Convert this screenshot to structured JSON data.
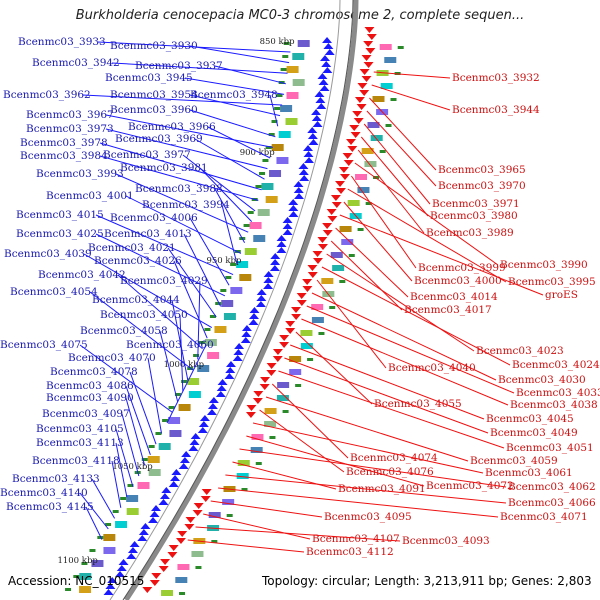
{
  "title": "Burkholderia cenocepacia MC0-3 chromosome 2, complete sequen...",
  "footer": {
    "accession": "Accession: NC_010515",
    "topology": "Topology: circular; Length: 3,213,911 bp; Genes: 2,803"
  },
  "colors": {
    "left_label": "#1a1ab0",
    "right_label": "#cc1111",
    "left_arrow": "#1a1aff",
    "right_arrow": "#ee1111",
    "backbone": "#8a8a8a",
    "gene_mark": "#2a8a2a"
  },
  "scale_ticks": [
    "850 kbp",
    "900 kbp",
    "950 kbp",
    "1000 kbp",
    "1050 kbp",
    "1100 kbp"
  ],
  "left_genes": [
    "Bcenmc03_3933",
    "Bcenmc03_3930",
    "Bcenmc03_3942",
    "Bcenmc03_3937",
    "Bcenmc03_3945",
    "Bcenmc03_3962",
    "Bcenmc03_3954",
    "Bcenmc03_3948",
    "Bcenmc03_3960",
    "Bcenmc03_3967",
    "Bcenmc03_3966",
    "Bcenmc03_3973",
    "Bcenmc03_3969",
    "Bcenmc03_3978",
    "Bcenmc03_3984",
    "Bcenmc03_3977",
    "Bcenmc03_3981",
    "Bcenmc03_3993",
    "Bcenmc03_3988",
    "Bcenmc03_4001",
    "Bcenmc03_3994",
    "Bcenmc03_4015",
    "Bcenmc03_4006",
    "Bcenmc03_4025",
    "Bcenmc03_4013",
    "Bcenmc03_4021",
    "Bcenmc03_4039",
    "Bcenmc03_4026",
    "Bcenmc03_4042",
    "Bcenmc03_4029",
    "Bcenmc03_4054",
    "Bcenmc03_4044",
    "Bcenmc03_4050",
    "Bcenmc03_4058",
    "Bcenmc03_4075",
    "Bcenmc03_4060",
    "Bcenmc03_4070",
    "Bcenmc03_4078",
    "Bcenmc03_4086",
    "Bcenmc03_4090",
    "Bcenmc03_4097",
    "Bcenmc03_4105",
    "Bcenmc03_4113",
    "Bcenmc03_4118",
    "Bcenmc03_4133",
    "Bcenmc03_4140",
    "Bcenmc03_4145"
  ],
  "right_genes": [
    "Bcenmc03_3932",
    "Bcenmc03_3944",
    "Bcenmc03_3965",
    "Bcenmc03_3970",
    "Bcenmc03_3971",
    "Bcenmc03_3980",
    "Bcenmc03_3989",
    "Bcenmc03_3990",
    "Bcenmc03_3999",
    "Bcenmc03_3995",
    "Bcenmc03_4000",
    "groES",
    "Bcenmc03_4014",
    "Bcenmc03_4017",
    "Bcenmc03_4023",
    "Bcenmc03_4024",
    "Bcenmc03_4040",
    "Bcenmc03_4030",
    "Bcenmc03_4033",
    "Bcenmc03_4038",
    "Bcenmc03_4055",
    "Bcenmc03_4045",
    "Bcenmc03_4049",
    "Bcenmc03_4051",
    "Bcenmc03_4074",
    "Bcenmc03_4059",
    "Bcenmc03_4076",
    "Bcenmc03_4061",
    "Bcenmc03_4072",
    "Bcenmc03_4062",
    "Bcenmc03_4091",
    "Bcenmc03_4066",
    "Bcenmc03_4071",
    "Bcenmc03_4095",
    "Bcenmc03_4107",
    "Bcenmc03_4093",
    "Bcenmc03_4112"
  ]
}
